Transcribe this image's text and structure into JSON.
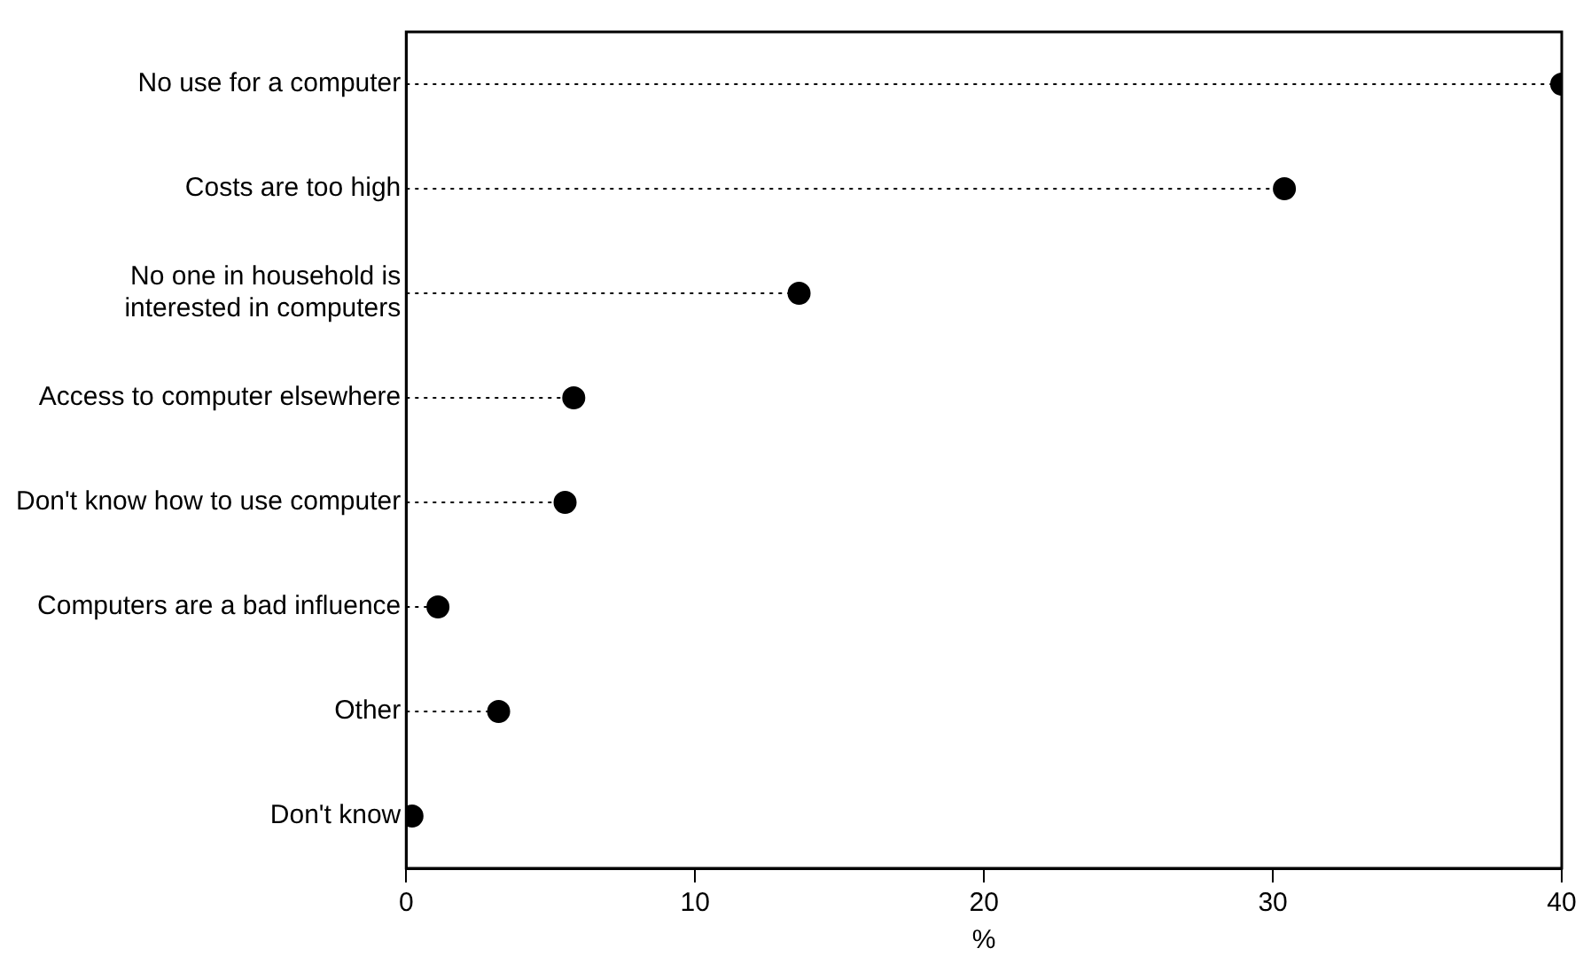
{
  "chart_data": {
    "type": "lollipop",
    "orientation": "horizontal",
    "xlabel": "%",
    "categories": [
      "No use for a computer",
      "Costs are too high",
      "No one in household is interested in computers",
      "Access to computer elsewhere",
      "Don't know how to use computer",
      "Computers are a bad influence",
      "Other",
      "Don't know"
    ],
    "values": [
      40,
      30.4,
      13.6,
      5.8,
      5.5,
      1.1,
      3.2,
      0.2
    ],
    "color": "#000000",
    "xlim": [
      0,
      40
    ],
    "xticks": [
      0,
      10,
      20,
      30,
      40
    ],
    "grid": false,
    "legend": false,
    "marker": "circle",
    "line_style": "dotted"
  }
}
